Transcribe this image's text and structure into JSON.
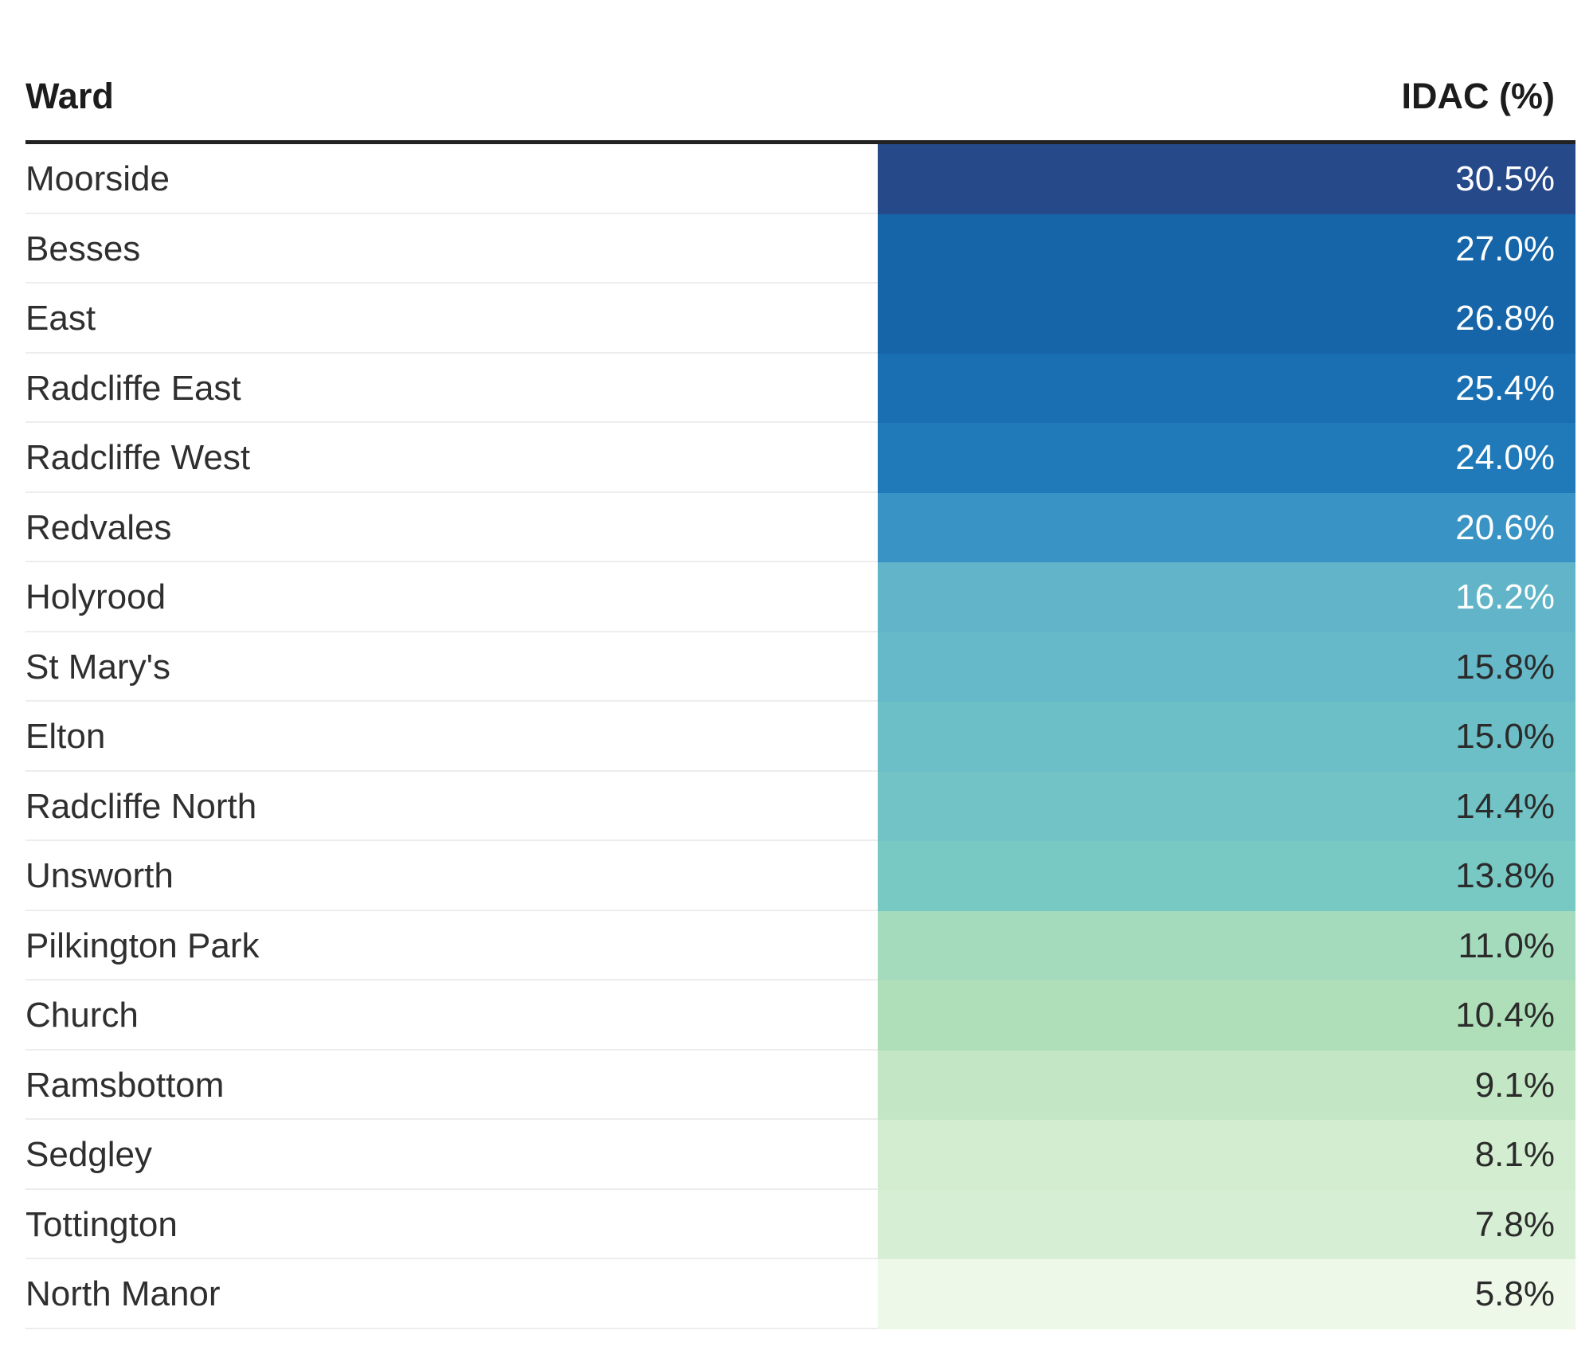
{
  "chart_data": {
    "type": "table",
    "columns": [
      "Ward",
      "IDAC (%)"
    ],
    "rows": [
      {
        "ward": "Moorside",
        "value": 30.5,
        "label": "30.5%",
        "color": "#26498a",
        "text_color": "#ffffff"
      },
      {
        "ward": "Besses",
        "value": 27.0,
        "label": "27.0%",
        "color": "#1565a8",
        "text_color": "#ffffff"
      },
      {
        "ward": "East",
        "value": 26.8,
        "label": "26.8%",
        "color": "#1565a8",
        "text_color": "#ffffff"
      },
      {
        "ward": "Radcliffe East",
        "value": 25.4,
        "label": "25.4%",
        "color": "#1a6fb2",
        "text_color": "#ffffff"
      },
      {
        "ward": "Radcliffe West",
        "value": 24.0,
        "label": "24.0%",
        "color": "#2079b8",
        "text_color": "#ffffff"
      },
      {
        "ward": "Redvales",
        "value": 20.6,
        "label": "20.6%",
        "color": "#3993c4",
        "text_color": "#ffffff"
      },
      {
        "ward": "Holyrood",
        "value": 16.2,
        "label": "16.2%",
        "color": "#62b5c9",
        "text_color": "#ffffff"
      },
      {
        "ward": "St Mary's",
        "value": 15.8,
        "label": "15.8%",
        "color": "#65b9c8",
        "text_color": "#2b2b2b"
      },
      {
        "ward": "Elton",
        "value": 15.0,
        "label": "15.0%",
        "color": "#6cbfc6",
        "text_color": "#2b2b2b"
      },
      {
        "ward": "Radcliffe North",
        "value": 14.4,
        "label": "14.4%",
        "color": "#71c3c6",
        "text_color": "#2b2b2b"
      },
      {
        "ward": "Unsworth",
        "value": 13.8,
        "label": "13.8%",
        "color": "#78c8c4",
        "text_color": "#2b2b2b"
      },
      {
        "ward": "Pilkington Park",
        "value": 11.0,
        "label": "11.0%",
        "color": "#a5dbbd",
        "text_color": "#2b2b2b"
      },
      {
        "ward": "Church",
        "value": 10.4,
        "label": "10.4%",
        "color": "#afdfb9",
        "text_color": "#2b2b2b"
      },
      {
        "ward": "Ramsbottom",
        "value": 9.1,
        "label": "9.1%",
        "color": "#c3e7c4",
        "text_color": "#2b2b2b"
      },
      {
        "ward": "Sedgley",
        "value": 8.1,
        "label": "8.1%",
        "color": "#d3edd0",
        "text_color": "#2b2b2b"
      },
      {
        "ward": "Tottington",
        "value": 7.8,
        "label": "7.8%",
        "color": "#d6eed3",
        "text_color": "#2b2b2b"
      },
      {
        "ward": "North Manor",
        "value": 5.8,
        "label": "5.8%",
        "color": "#eef8e8",
        "text_color": "#2b2b2b"
      }
    ]
  }
}
